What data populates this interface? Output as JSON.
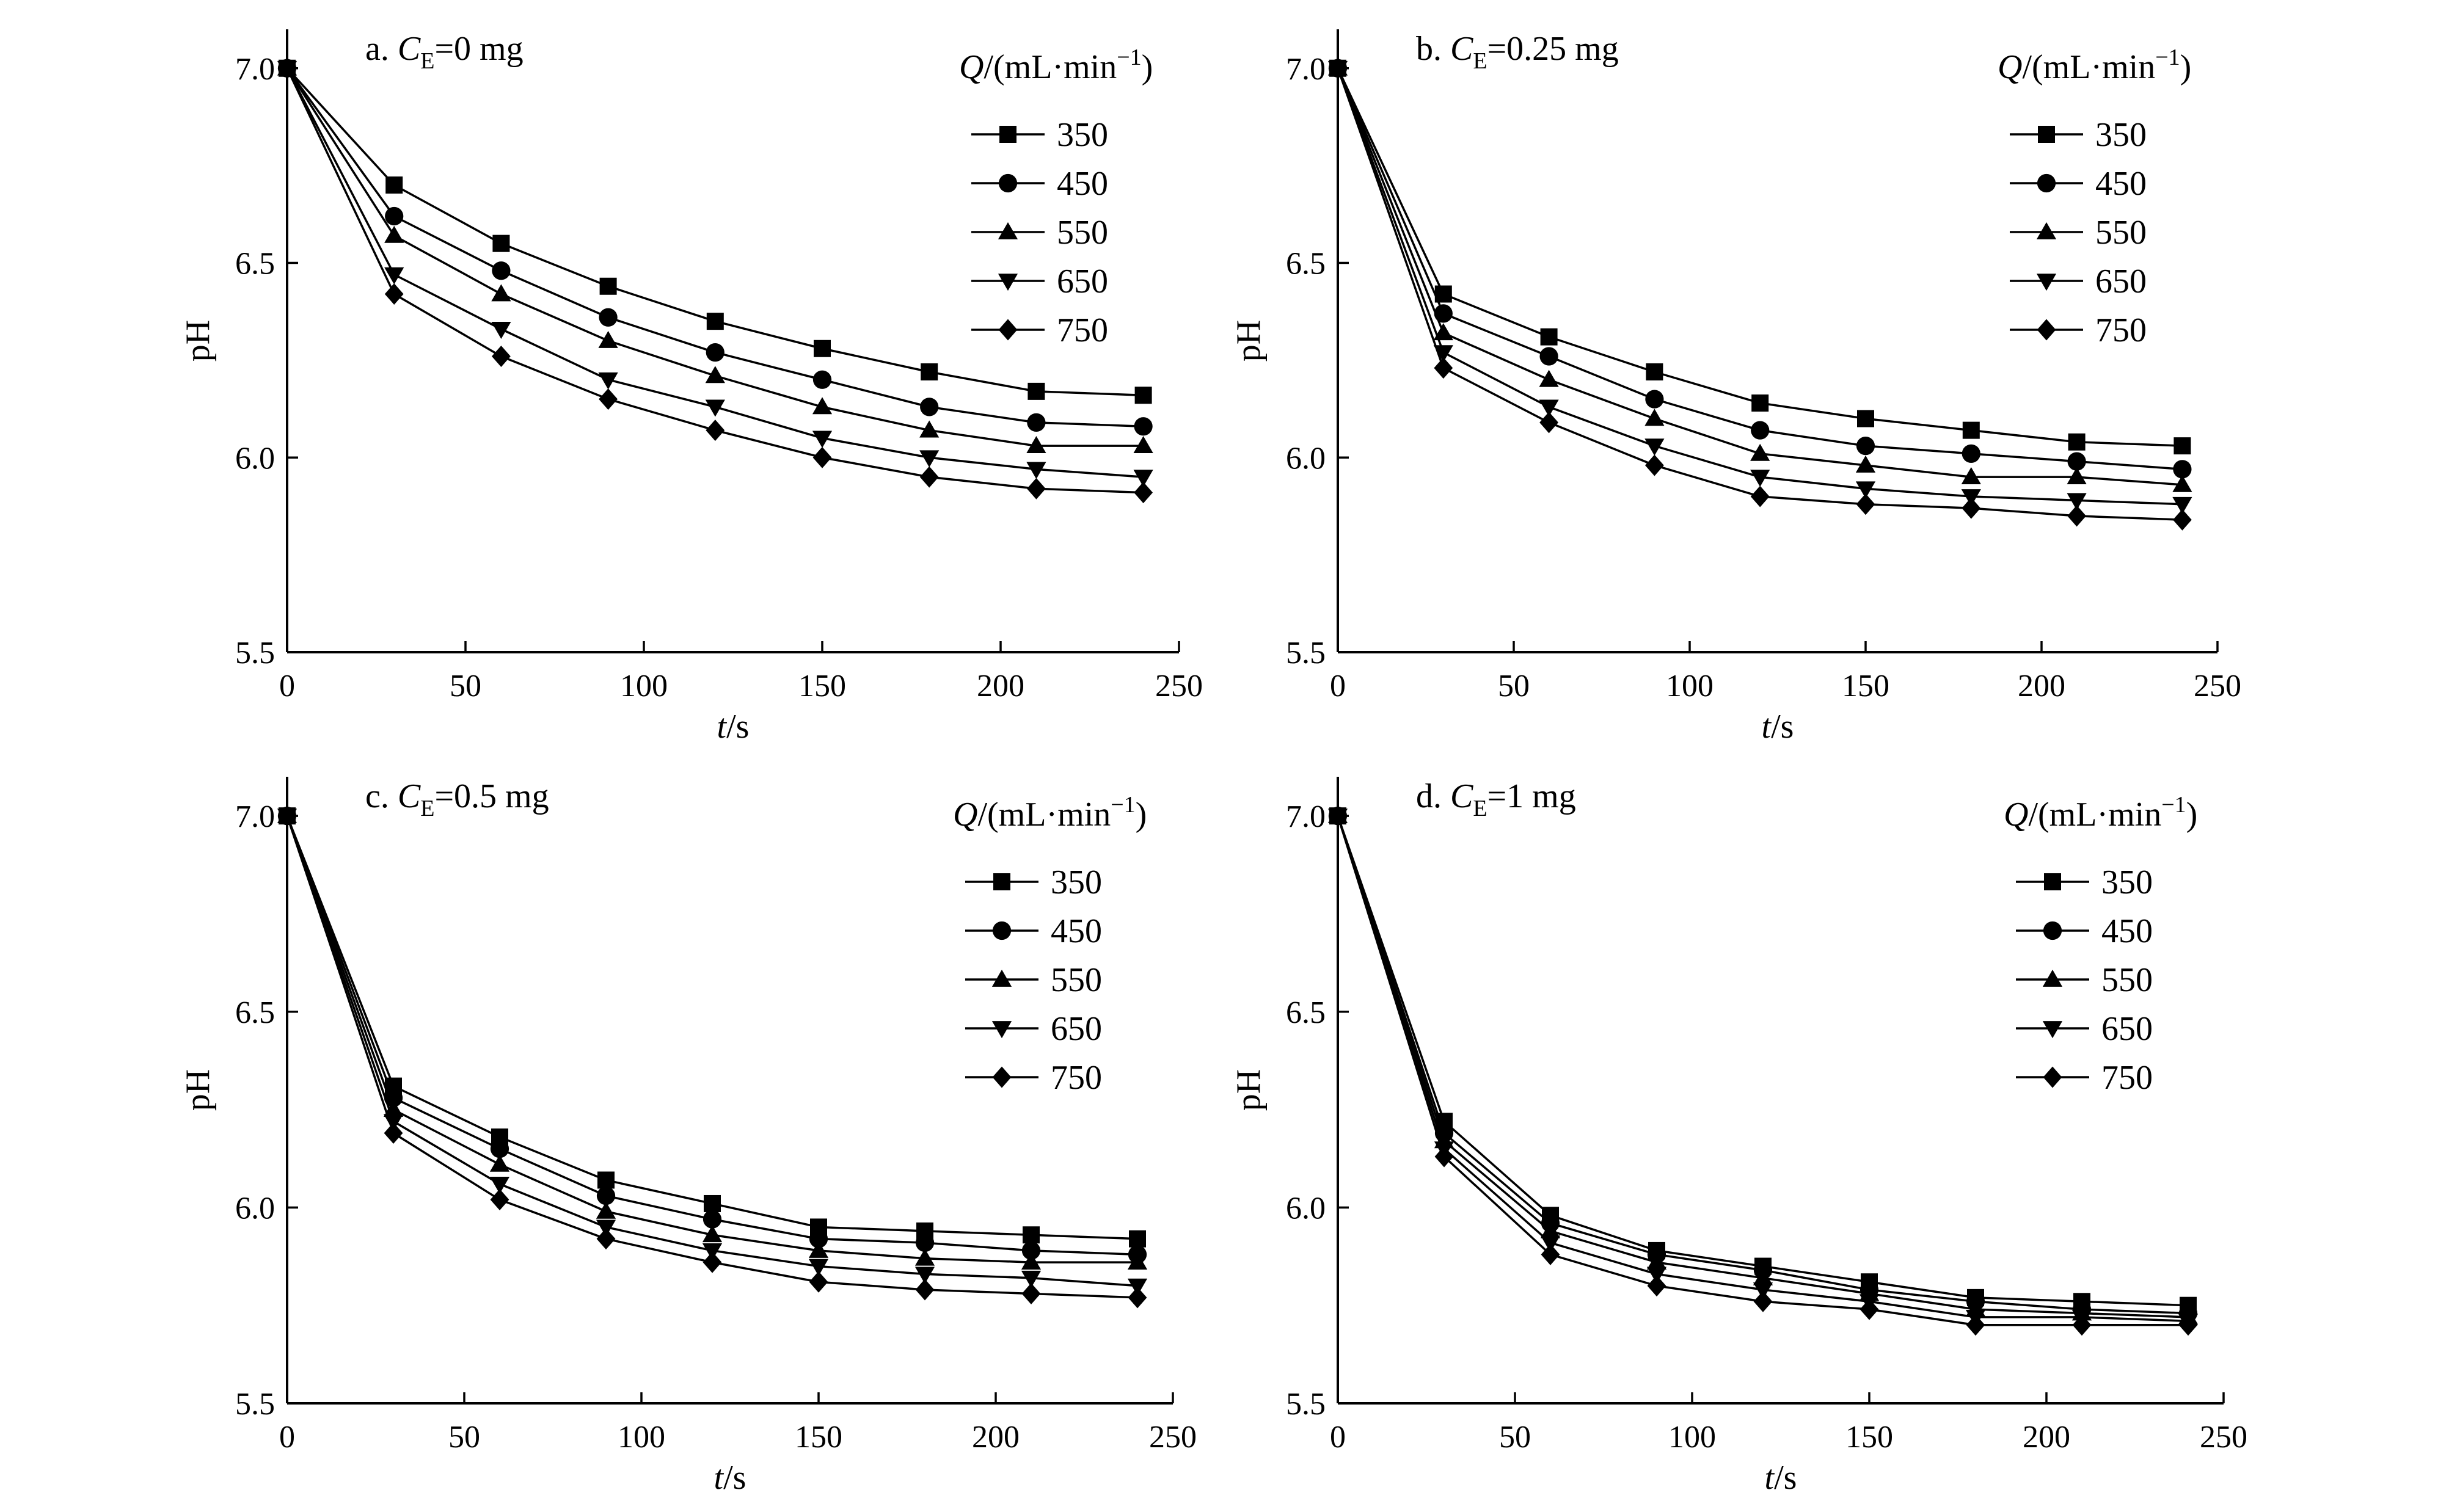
{
  "chart_data": [
    {
      "type": "line",
      "title": "a. C_E=0 mg",
      "title_parts": {
        "prefix": "a. ",
        "var": "C",
        "sub": "E",
        "rest": "=0 mg"
      },
      "xlabel": "t/s",
      "xlabel_parts": {
        "var": "t",
        "rest": "/s"
      },
      "ylabel": "pH",
      "xlim": [
        0,
        250
      ],
      "ylim": [
        5.5,
        7.1
      ],
      "xticks": [
        "0",
        "50",
        "100",
        "150",
        "200",
        "250"
      ],
      "yticks": [
        "5.5",
        "6.0",
        "6.5",
        "7.0"
      ],
      "legend_title": "Q/(mL·min−1)",
      "legend_title_parts": {
        "var": "Q",
        "rest": "/(mL·min",
        "sup": "−1",
        "close": ")"
      },
      "x": [
        0,
        30,
        60,
        90,
        120,
        150,
        180,
        210,
        240
      ],
      "series": [
        {
          "name": "350",
          "marker": "square",
          "values": [
            7.0,
            6.7,
            6.55,
            6.44,
            6.35,
            6.28,
            6.22,
            6.17,
            6.16
          ]
        },
        {
          "name": "450",
          "marker": "circle",
          "values": [
            7.0,
            6.62,
            6.48,
            6.36,
            6.27,
            6.2,
            6.13,
            6.09,
            6.08
          ]
        },
        {
          "name": "550",
          "marker": "triangle-up",
          "values": [
            7.0,
            6.57,
            6.42,
            6.3,
            6.21,
            6.13,
            6.07,
            6.03,
            6.03
          ]
        },
        {
          "name": "650",
          "marker": "triangle-down",
          "values": [
            7.0,
            6.47,
            6.33,
            6.2,
            6.13,
            6.05,
            6.0,
            5.97,
            5.95
          ]
        },
        {
          "name": "750",
          "marker": "diamond",
          "values": [
            7.0,
            6.42,
            6.26,
            6.15,
            6.07,
            6.0,
            5.95,
            5.92,
            5.91
          ]
        }
      ]
    },
    {
      "type": "line",
      "title": "b. C_E=0.25 mg",
      "title_parts": {
        "prefix": "b. ",
        "var": "C",
        "sub": "E",
        "rest": "=0.25 mg"
      },
      "xlabel": "t/s",
      "xlabel_parts": {
        "var": "t",
        "rest": "/s"
      },
      "ylabel": "pH",
      "xlim": [
        0,
        250
      ],
      "ylim": [
        5.5,
        7.1
      ],
      "xticks": [
        "0",
        "50",
        "100",
        "150",
        "200",
        "250"
      ],
      "yticks": [
        "5.5",
        "6.0",
        "6.5",
        "7.0"
      ],
      "legend_title": "Q/(mL·min−1)",
      "legend_title_parts": {
        "var": "Q",
        "rest": "/(mL·min",
        "sup": "−1",
        "close": ")"
      },
      "x": [
        0,
        30,
        60,
        90,
        120,
        150,
        180,
        210,
        240
      ],
      "series": [
        {
          "name": "350",
          "marker": "square",
          "values": [
            7.0,
            6.42,
            6.31,
            6.22,
            6.14,
            6.1,
            6.07,
            6.04,
            6.03
          ]
        },
        {
          "name": "450",
          "marker": "circle",
          "values": [
            7.0,
            6.37,
            6.26,
            6.15,
            6.07,
            6.03,
            6.01,
            5.99,
            5.97
          ]
        },
        {
          "name": "550",
          "marker": "triangle-up",
          "values": [
            7.0,
            6.32,
            6.2,
            6.1,
            6.01,
            5.98,
            5.95,
            5.95,
            5.93
          ]
        },
        {
          "name": "650",
          "marker": "triangle-down",
          "values": [
            7.0,
            6.27,
            6.13,
            6.03,
            5.95,
            5.92,
            5.9,
            5.89,
            5.88
          ]
        },
        {
          "name": "750",
          "marker": "diamond",
          "values": [
            7.0,
            6.23,
            6.09,
            5.98,
            5.9,
            5.88,
            5.87,
            5.85,
            5.84
          ]
        }
      ]
    },
    {
      "type": "line",
      "title": "c. C_E=0.5 mg",
      "title_parts": {
        "prefix": "c. ",
        "var": "C",
        "sub": "E",
        "rest": "=0.5 mg"
      },
      "xlabel": "t/s",
      "xlabel_parts": {
        "var": "t",
        "rest": "/s"
      },
      "ylabel": "pH",
      "xlim": [
        0,
        250
      ],
      "ylim": [
        5.5,
        7.1
      ],
      "xticks": [
        "0",
        "50",
        "100",
        "150",
        "200",
        "250"
      ],
      "yticks": [
        "5.5",
        "6.0",
        "6.5",
        "7.0"
      ],
      "legend_title": "Q/(mL·min−1)",
      "legend_title_parts": {
        "var": "Q",
        "rest": "/(mL·min",
        "sup": "−1",
        "close": ")"
      },
      "x": [
        0,
        30,
        60,
        90,
        120,
        150,
        180,
        210,
        240
      ],
      "series": [
        {
          "name": "350",
          "marker": "square",
          "values": [
            7.0,
            6.31,
            6.18,
            6.07,
            6.01,
            5.95,
            5.94,
            5.93,
            5.92
          ]
        },
        {
          "name": "450",
          "marker": "circle",
          "values": [
            7.0,
            6.28,
            6.15,
            6.03,
            5.97,
            5.92,
            5.91,
            5.89,
            5.88
          ]
        },
        {
          "name": "550",
          "marker": "triangle-up",
          "values": [
            7.0,
            6.25,
            6.11,
            5.99,
            5.93,
            5.89,
            5.87,
            5.86,
            5.86
          ]
        },
        {
          "name": "650",
          "marker": "triangle-down",
          "values": [
            7.0,
            6.22,
            6.06,
            5.95,
            5.89,
            5.85,
            5.83,
            5.82,
            5.8
          ]
        },
        {
          "name": "750",
          "marker": "diamond",
          "values": [
            7.0,
            6.19,
            6.02,
            5.92,
            5.86,
            5.81,
            5.79,
            5.78,
            5.77
          ]
        }
      ]
    },
    {
      "type": "line",
      "title": "d. C_E=1 mg",
      "title_parts": {
        "prefix": "d. ",
        "var": "C",
        "sub": "E",
        "rest": "=1 mg"
      },
      "xlabel": "t/s",
      "xlabel_parts": {
        "var": "t",
        "rest": "/s"
      },
      "ylabel": "pH",
      "xlim": [
        0,
        250
      ],
      "ylim": [
        5.5,
        7.1
      ],
      "xticks": [
        "0",
        "50",
        "100",
        "150",
        "200",
        "250"
      ],
      "yticks": [
        "5.5",
        "6.0",
        "6.5",
        "7.0"
      ],
      "legend_title": "Q/(mL·min−1)",
      "legend_title_parts": {
        "var": "Q",
        "rest": "/(mL·min",
        "sup": "−1",
        "close": ")"
      },
      "x": [
        0,
        30,
        60,
        90,
        120,
        150,
        180,
        210,
        240
      ],
      "series": [
        {
          "name": "350",
          "marker": "square",
          "values": [
            7.0,
            6.22,
            5.98,
            5.89,
            5.85,
            5.81,
            5.77,
            5.76,
            5.75
          ]
        },
        {
          "name": "450",
          "marker": "circle",
          "values": [
            7.0,
            6.19,
            5.96,
            5.88,
            5.84,
            5.79,
            5.76,
            5.74,
            5.73
          ]
        },
        {
          "name": "550",
          "marker": "triangle-up",
          "values": [
            7.0,
            6.17,
            5.94,
            5.86,
            5.82,
            5.78,
            5.74,
            5.73,
            5.72
          ]
        },
        {
          "name": "650",
          "marker": "triangle-down",
          "values": [
            7.0,
            6.15,
            5.91,
            5.83,
            5.79,
            5.76,
            5.72,
            5.72,
            5.71
          ]
        },
        {
          "name": "750",
          "marker": "diamond",
          "values": [
            7.0,
            6.13,
            5.88,
            5.8,
            5.76,
            5.74,
            5.7,
            5.7,
            5.7
          ]
        }
      ]
    }
  ]
}
